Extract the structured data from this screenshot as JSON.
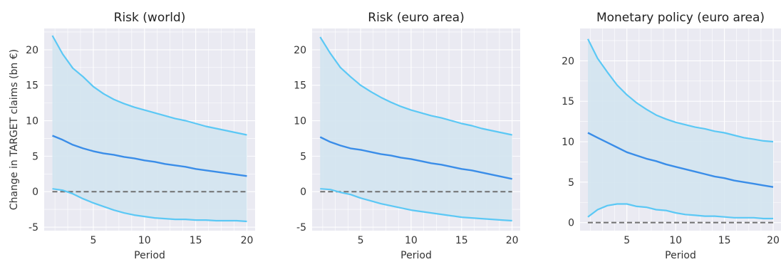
{
  "chart_data": [
    {
      "type": "line",
      "title": "Risk (world)",
      "xlabel": "Period",
      "ylabel": "Change in TARGET claims (bn €)",
      "xlim": [
        0.2,
        20.8
      ],
      "ylim": [
        -5.5,
        23
      ],
      "xticks": [
        5,
        10,
        15,
        20
      ],
      "yticks": [
        -5,
        0,
        5,
        10,
        15,
        20
      ],
      "grid": true,
      "x": [
        1,
        2,
        3,
        4,
        5,
        6,
        7,
        8,
        9,
        10,
        11,
        12,
        13,
        14,
        15,
        16,
        17,
        18,
        19,
        20
      ],
      "series": [
        {
          "role": "upper",
          "color": "#5bc8f5",
          "values": [
            22.0,
            19.4,
            17.4,
            16.2,
            14.8,
            13.8,
            13.0,
            12.4,
            11.9,
            11.5,
            11.1,
            10.7,
            10.3,
            10.0,
            9.6,
            9.2,
            8.9,
            8.6,
            8.3,
            8.0
          ]
        },
        {
          "role": "median",
          "color": "#3a8de8",
          "values": [
            7.9,
            7.3,
            6.6,
            6.1,
            5.7,
            5.4,
            5.2,
            4.9,
            4.7,
            4.4,
            4.2,
            3.9,
            3.7,
            3.5,
            3.2,
            3.0,
            2.8,
            2.6,
            2.4,
            2.2
          ]
        },
        {
          "role": "lower",
          "color": "#5bc8f5",
          "values": [
            0.4,
            0.2,
            -0.3,
            -1.0,
            -1.6,
            -2.1,
            -2.6,
            -3.0,
            -3.3,
            -3.5,
            -3.7,
            -3.8,
            -3.9,
            -3.9,
            -4.0,
            -4.0,
            -4.1,
            -4.1,
            -4.1,
            -4.2
          ]
        }
      ],
      "reference_line": {
        "y": 0,
        "style": "dashed",
        "color": "#707070"
      },
      "band_color": "#d3e4f0"
    },
    {
      "type": "line",
      "title": "Risk (euro area)",
      "xlabel": "Period",
      "ylabel": "",
      "xlim": [
        0.2,
        20.8
      ],
      "ylim": [
        -5.5,
        23
      ],
      "xticks": [
        5,
        10,
        15,
        20
      ],
      "yticks": [
        -5,
        0,
        5,
        10,
        15,
        20
      ],
      "grid": true,
      "x": [
        1,
        2,
        3,
        4,
        5,
        6,
        7,
        8,
        9,
        10,
        11,
        12,
        13,
        14,
        15,
        16,
        17,
        18,
        19,
        20
      ],
      "series": [
        {
          "role": "upper",
          "color": "#5bc8f5",
          "values": [
            21.8,
            19.5,
            17.5,
            16.2,
            15.0,
            14.1,
            13.3,
            12.6,
            12.0,
            11.5,
            11.1,
            10.7,
            10.4,
            10.0,
            9.6,
            9.3,
            8.9,
            8.6,
            8.3,
            8.0
          ]
        },
        {
          "role": "median",
          "color": "#3a8de8",
          "values": [
            7.7,
            7.0,
            6.5,
            6.1,
            5.9,
            5.6,
            5.3,
            5.1,
            4.8,
            4.6,
            4.3,
            4.0,
            3.8,
            3.5,
            3.2,
            3.0,
            2.7,
            2.4,
            2.1,
            1.8
          ]
        },
        {
          "role": "lower",
          "color": "#5bc8f5",
          "values": [
            0.4,
            0.3,
            -0.1,
            -0.4,
            -0.9,
            -1.3,
            -1.7,
            -2.0,
            -2.3,
            -2.6,
            -2.8,
            -3.0,
            -3.2,
            -3.4,
            -3.6,
            -3.7,
            -3.8,
            -3.9,
            -4.0,
            -4.1
          ]
        }
      ],
      "reference_line": {
        "y": 0,
        "style": "dashed",
        "color": "#707070"
      },
      "band_color": "#d3e4f0"
    },
    {
      "type": "line",
      "title": "Monetary policy (euro area)",
      "xlabel": "Period",
      "ylabel": "",
      "xlim": [
        0.2,
        20.8
      ],
      "ylim": [
        -1,
        24
      ],
      "xticks": [
        5,
        10,
        15,
        20
      ],
      "yticks": [
        0,
        5,
        10,
        15,
        20
      ],
      "grid": true,
      "x": [
        1,
        2,
        3,
        4,
        5,
        6,
        7,
        8,
        9,
        10,
        11,
        12,
        13,
        14,
        15,
        16,
        17,
        18,
        19,
        20
      ],
      "series": [
        {
          "role": "upper",
          "color": "#5bc8f5",
          "values": [
            22.7,
            20.3,
            18.6,
            17.0,
            15.8,
            14.8,
            14.0,
            13.3,
            12.8,
            12.4,
            12.1,
            11.8,
            11.6,
            11.3,
            11.1,
            10.8,
            10.5,
            10.3,
            10.1,
            10.0
          ]
        },
        {
          "role": "median",
          "color": "#3a8de8",
          "values": [
            11.1,
            10.5,
            9.9,
            9.3,
            8.7,
            8.3,
            7.9,
            7.6,
            7.2,
            6.9,
            6.6,
            6.3,
            6.0,
            5.7,
            5.5,
            5.2,
            5.0,
            4.8,
            4.6,
            4.4
          ]
        },
        {
          "role": "lower",
          "color": "#5bc8f5",
          "values": [
            0.7,
            1.6,
            2.1,
            2.3,
            2.3,
            2.0,
            1.9,
            1.6,
            1.5,
            1.2,
            1.0,
            0.9,
            0.8,
            0.8,
            0.7,
            0.6,
            0.6,
            0.6,
            0.5,
            0.5
          ]
        }
      ],
      "reference_line": {
        "y": 0,
        "style": "dashed",
        "color": "#707070"
      },
      "band_color": "#d3e4f0"
    }
  ]
}
